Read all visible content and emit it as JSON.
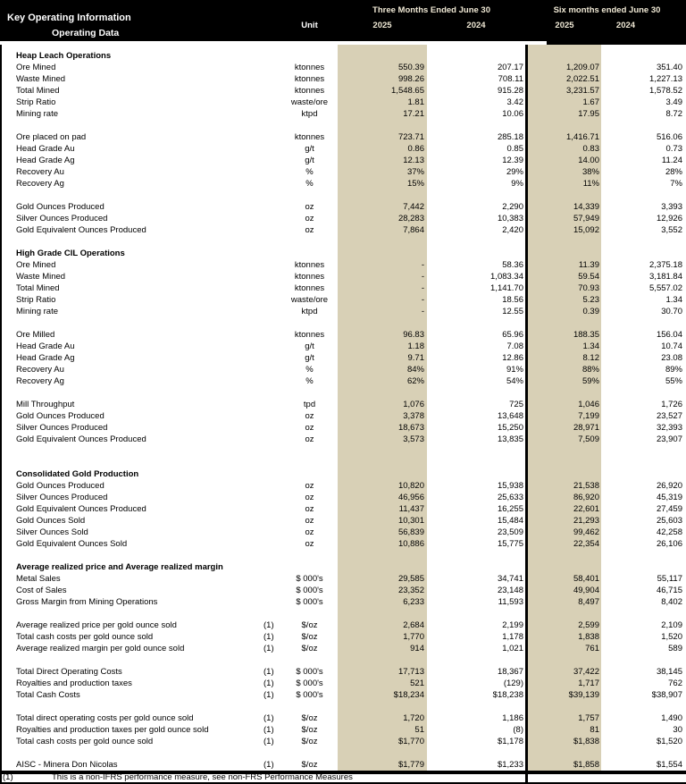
{
  "colors": {
    "header_bg": "#000000",
    "header_accent_text": "#efe8d4",
    "highlight_column_2025": "#d8d0b6"
  },
  "header": {
    "title": "Key Operating Information",
    "subtitle": "Operating Data",
    "unit_label": "Unit",
    "groups": [
      {
        "label": "Three Months Ended June 30",
        "years": [
          "2025",
          "2024"
        ]
      },
      {
        "label": "Six months ended June 30",
        "years": [
          "2025",
          "2024"
        ]
      }
    ]
  },
  "table": {
    "columns": [
      "label",
      "footnote",
      "unit",
      "Three Months Ended June 30 2025",
      "Three Months Ended June 30 2024",
      "Six months ended June 30 2025",
      "Six months ended June 30 2024"
    ],
    "rows": [
      {
        "type": "section",
        "label": "Heap Leach Operations"
      },
      {
        "type": "data",
        "label": "Ore Mined",
        "unit": "ktonnes",
        "values": [
          "550.39",
          "207.17",
          "1,209.07",
          "351.40"
        ]
      },
      {
        "type": "data",
        "label": "Waste Mined",
        "unit": "ktonnes",
        "values": [
          "998.26",
          "708.11",
          "2,022.51",
          "1,227.13"
        ]
      },
      {
        "type": "data",
        "label": "Total Mined",
        "unit": "ktonnes",
        "values": [
          "1,548.65",
          "915.28",
          "3,231.57",
          "1,578.52"
        ]
      },
      {
        "type": "data",
        "label": "Strip Ratio",
        "unit": "waste/ore",
        "values": [
          "1.81",
          "3.42",
          "1.67",
          "3.49"
        ]
      },
      {
        "type": "data",
        "label": "Mining rate",
        "unit": "ktpd",
        "values": [
          "17.21",
          "10.06",
          "17.95",
          "8.72"
        ]
      },
      {
        "type": "blank"
      },
      {
        "type": "data",
        "label": "Ore placed on pad",
        "unit": "ktonnes",
        "values": [
          "723.71",
          "285.18",
          "1,416.71",
          "516.06"
        ]
      },
      {
        "type": "data",
        "label": "Head Grade Au",
        "unit": "g/t",
        "values": [
          "0.86",
          "0.85",
          "0.83",
          "0.73"
        ]
      },
      {
        "type": "data",
        "label": "Head Grade Ag",
        "unit": "g/t",
        "values": [
          "12.13",
          "12.39",
          "14.00",
          "11.24"
        ]
      },
      {
        "type": "data",
        "label": "Recovery Au",
        "unit": "%",
        "values": [
          "37%",
          "29%",
          "38%",
          "28%"
        ]
      },
      {
        "type": "data",
        "label": "Recovery Ag",
        "unit": "%",
        "values": [
          "15%",
          "9%",
          "11%",
          "7%"
        ]
      },
      {
        "type": "blank"
      },
      {
        "type": "data",
        "label": "Gold Ounces Produced",
        "unit": "oz",
        "values": [
          "7,442",
          "2,290",
          "14,339",
          "3,393"
        ]
      },
      {
        "type": "data",
        "label": "Silver Ounces Produced",
        "unit": "oz",
        "values": [
          "28,283",
          "10,383",
          "57,949",
          "12,926"
        ]
      },
      {
        "type": "data",
        "label": "Gold Equivalent Ounces Produced",
        "unit": "oz",
        "values": [
          "7,864",
          "2,420",
          "15,092",
          "3,552"
        ]
      },
      {
        "type": "blank"
      },
      {
        "type": "section",
        "label": "High Grade CIL Operations"
      },
      {
        "type": "data",
        "label": "Ore Mined",
        "unit": "ktonnes",
        "values": [
          "-",
          "58.36",
          "11.39",
          "2,375.18"
        ]
      },
      {
        "type": "data",
        "label": "Waste Mined",
        "unit": "ktonnes",
        "values": [
          "-",
          "1,083.34",
          "59.54",
          "3,181.84"
        ]
      },
      {
        "type": "data",
        "label": "Total Mined",
        "unit": "ktonnes",
        "values": [
          "-",
          "1,141.70",
          "70.93",
          "5,557.02"
        ]
      },
      {
        "type": "data",
        "label": "Strip Ratio",
        "unit": "waste/ore",
        "values": [
          "-",
          "18.56",
          "5.23",
          "1.34"
        ]
      },
      {
        "type": "data",
        "label": "Mining rate",
        "unit": "ktpd",
        "values": [
          "-",
          "12.55",
          "0.39",
          "30.70"
        ]
      },
      {
        "type": "blank"
      },
      {
        "type": "data",
        "label": "Ore Milled",
        "unit": "ktonnes",
        "values": [
          "96.83",
          "65.96",
          "188.35",
          "156.04"
        ]
      },
      {
        "type": "data",
        "label": "Head Grade Au",
        "unit": "g/t",
        "values": [
          "1.18",
          "7.08",
          "1.34",
          "10.74"
        ]
      },
      {
        "type": "data",
        "label": "Head Grade Ag",
        "unit": "g/t",
        "values": [
          "9.71",
          "12.86",
          "8.12",
          "23.08"
        ]
      },
      {
        "type": "data",
        "label": "Recovery Au",
        "unit": "%",
        "values": [
          "84%",
          "91%",
          "88%",
          "89%"
        ]
      },
      {
        "type": "data",
        "label": "Recovery Ag",
        "unit": "%",
        "values": [
          "62%",
          "54%",
          "59%",
          "55%"
        ]
      },
      {
        "type": "blank"
      },
      {
        "type": "data",
        "label": "Mill Throughput",
        "unit": "tpd",
        "values": [
          "1,076",
          "725",
          "1,046",
          "1,726"
        ]
      },
      {
        "type": "data",
        "label": "Gold Ounces Produced",
        "unit": "oz",
        "values": [
          "3,378",
          "13,648",
          "7,199",
          "23,527"
        ]
      },
      {
        "type": "data",
        "label": "Silver Ounces Produced",
        "unit": "oz",
        "values": [
          "18,673",
          "15,250",
          "28,971",
          "32,393"
        ]
      },
      {
        "type": "data",
        "label": "Gold Equivalent Ounces Produced",
        "unit": "oz",
        "values": [
          "3,573",
          "13,835",
          "7,509",
          "23,907"
        ]
      },
      {
        "type": "blank"
      },
      {
        "type": "blank"
      },
      {
        "type": "section",
        "label": "Consolidated Gold Production"
      },
      {
        "type": "data",
        "label": "Gold Ounces Produced",
        "unit": "oz",
        "values": [
          "10,820",
          "15,938",
          "21,538",
          "26,920"
        ]
      },
      {
        "type": "data",
        "label": "Silver Ounces Produced",
        "unit": "oz",
        "values": [
          "46,956",
          "25,633",
          "86,920",
          "45,319"
        ]
      },
      {
        "type": "data",
        "label": "Gold Equivalent Ounces Produced",
        "unit": "oz",
        "values": [
          "11,437",
          "16,255",
          "22,601",
          "27,459"
        ]
      },
      {
        "type": "data",
        "label": "Gold Ounces Sold",
        "unit": "oz",
        "values": [
          "10,301",
          "15,484",
          "21,293",
          "25,603"
        ]
      },
      {
        "type": "data",
        "label": "Silver Ounces Sold",
        "unit": "oz",
        "values": [
          "56,839",
          "23,509",
          "99,462",
          "42,258"
        ]
      },
      {
        "type": "data",
        "label": "Gold Equivalent Ounces Sold",
        "unit": "oz",
        "values": [
          "10,886",
          "15,775",
          "22,354",
          "26,106"
        ]
      },
      {
        "type": "blank"
      },
      {
        "type": "section",
        "label": "Average realized price and Average realized margin"
      },
      {
        "type": "data",
        "label": "Metal Sales",
        "unit": "$ 000's",
        "values": [
          "29,585",
          "34,741",
          "58,401",
          "55,117"
        ]
      },
      {
        "type": "data",
        "label": "Cost of Sales",
        "unit": "$ 000's",
        "values": [
          "23,352",
          "23,148",
          "49,904",
          "46,715"
        ]
      },
      {
        "type": "data",
        "label": "Gross Margin from Mining Operations",
        "unit": "$ 000's",
        "values": [
          "6,233",
          "11,593",
          "8,497",
          "8,402"
        ]
      },
      {
        "type": "blank"
      },
      {
        "type": "data",
        "label": "Average realized price per gold ounce sold",
        "fn": "(1)",
        "unit": "$/oz",
        "values": [
          "2,684",
          "2,199",
          "2,599",
          "2,109"
        ]
      },
      {
        "type": "data",
        "label": "Total cash costs per gold ounce sold",
        "fn": "(1)",
        "unit": "$/oz",
        "values": [
          "1,770",
          "1,178",
          "1,838",
          "1,520"
        ]
      },
      {
        "type": "data",
        "label": "Average realized margin per gold ounce sold",
        "fn": "(1)",
        "unit": "$/oz",
        "values": [
          "914",
          "1,021",
          "761",
          "589"
        ]
      },
      {
        "type": "blank"
      },
      {
        "type": "data",
        "label": "Total Direct Operating Costs",
        "fn": "(1)",
        "unit": "$ 000's",
        "values": [
          "17,713",
          "18,367",
          "37,422",
          "38,145"
        ]
      },
      {
        "type": "data",
        "label": "Royalties and production taxes",
        "fn": "(1)",
        "unit": "$ 000's",
        "values": [
          "521",
          "(129)",
          "1,717",
          "762"
        ]
      },
      {
        "type": "data",
        "label": "Total Cash Costs",
        "fn": "(1)",
        "unit": "$ 000's",
        "values": [
          "$18,234",
          "$18,238",
          "$39,139",
          "$38,907"
        ]
      },
      {
        "type": "blank"
      },
      {
        "type": "data",
        "label": "Total direct operating costs per gold ounce sold",
        "fn": "(1)",
        "unit": "$/oz",
        "values": [
          "1,720",
          "1,186",
          "1,757",
          "1,490"
        ]
      },
      {
        "type": "data",
        "label": "Royalties and production taxes per gold ounce sold",
        "fn": "(1)",
        "unit": "$/oz",
        "values": [
          "51",
          "(8)",
          "81",
          "30"
        ]
      },
      {
        "type": "data",
        "label": "Total cash costs per gold ounce sold",
        "fn": "(1)",
        "unit": "$/oz",
        "values": [
          "$1,770",
          "$1,178",
          "$1,838",
          "$1,520"
        ]
      },
      {
        "type": "blank"
      },
      {
        "type": "data",
        "label": "AISC - Minera Don Nicolas",
        "fn": "(1)",
        "unit": "$/oz",
        "values": [
          "$1,779",
          "$1,233",
          "$1,858",
          "$1,554"
        ]
      }
    ]
  },
  "footnote": {
    "marker": "(1)",
    "text": "This is a non-IFRS performance measure, see non-FRS Performance Measures"
  }
}
